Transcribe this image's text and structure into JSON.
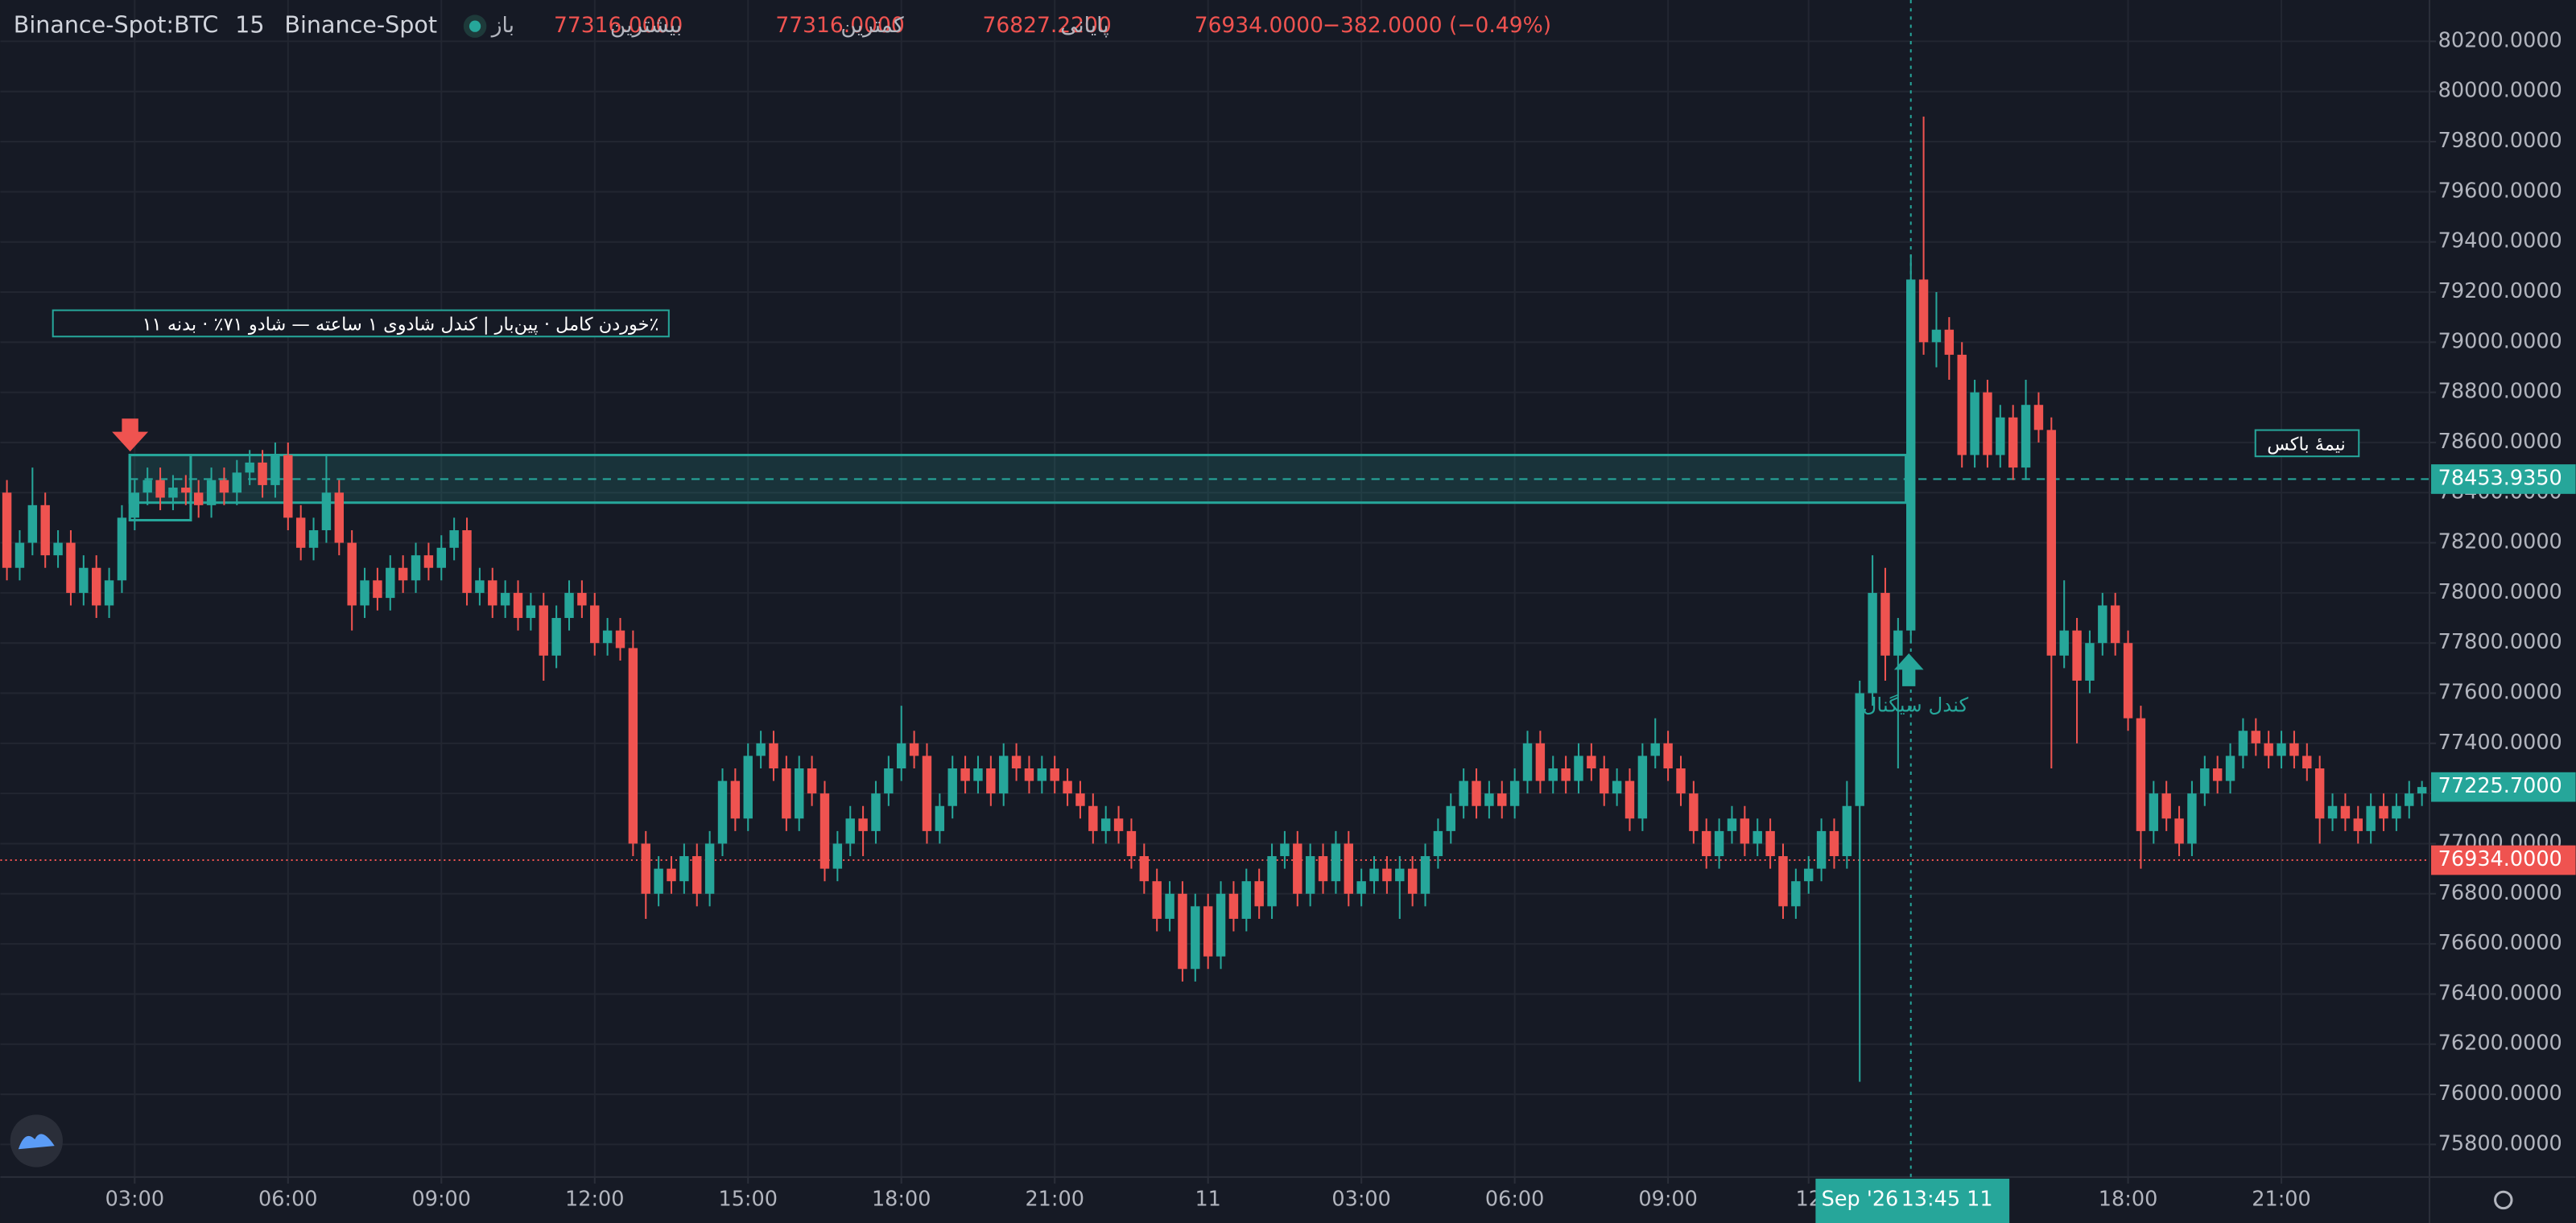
{
  "chart_data": {
    "type": "candlestick",
    "header": {
      "symbol": "Binance-Spot:BTC",
      "interval": "15",
      "exchange": "Binance-Spot",
      "fields": [
        {
          "label": "باز",
          "value": "77316.0000"
        },
        {
          "label": "بیشترین",
          "value": "77316.0000"
        },
        {
          "label": "کمترین",
          "value": "76827.2200"
        },
        {
          "label": "پایانی",
          "value": "76934.0000"
        }
      ],
      "change": "−382.0000 (−0.49%)"
    },
    "up_color": "#26a69a",
    "down_color": "#ef5350",
    "ylim": [
      75670,
      80365
    ],
    "yticks": [
      {
        "value": 75800,
        "label": "75800.0000"
      },
      {
        "value": 76000,
        "label": "76000.0000"
      },
      {
        "value": 76200,
        "label": "76200.0000"
      },
      {
        "value": 76400,
        "label": "76400.0000"
      },
      {
        "value": 76600,
        "label": "76600.0000"
      },
      {
        "value": 76800,
        "label": "76800.0000"
      },
      {
        "value": 77000,
        "label": "77000.0000"
      },
      {
        "value": 77200,
        "label": "77200.0000"
      },
      {
        "value": 77400,
        "label": "77400.0000"
      },
      {
        "value": 77600,
        "label": "77600.0000"
      },
      {
        "value": 77800,
        "label": "77800.0000"
      },
      {
        "value": 78000,
        "label": "78000.0000"
      },
      {
        "value": 78200,
        "label": "78200.0000"
      },
      {
        "value": 78400,
        "label": "78400.0000"
      },
      {
        "value": 78600,
        "label": "78600.0000"
      },
      {
        "value": 78800,
        "label": "78800.0000"
      },
      {
        "value": 79000,
        "label": "79000.0000"
      },
      {
        "value": 79200,
        "label": "79200.0000"
      },
      {
        "value": 79400,
        "label": "79400.0000"
      },
      {
        "value": 79600,
        "label": "79600.0000"
      },
      {
        "value": 79800,
        "label": "79800.0000"
      },
      {
        "value": 80000,
        "label": "80000.0000"
      },
      {
        "value": 80200,
        "label": "80200.0000"
      }
    ],
    "xticks": [
      {
        "value": 10,
        "label": "03:00"
      },
      {
        "value": 22,
        "label": "06:00"
      },
      {
        "value": 34,
        "label": "09:00"
      },
      {
        "value": 46,
        "label": "12:00"
      },
      {
        "value": 58,
        "label": "15:00"
      },
      {
        "value": 70,
        "label": "18:00"
      },
      {
        "value": 82,
        "label": "21:00"
      },
      {
        "value": 94,
        "label": "11"
      },
      {
        "value": 106,
        "label": "03:00"
      },
      {
        "value": 118,
        "label": "06:00"
      },
      {
        "value": 130,
        "label": "09:00"
      },
      {
        "value": 141,
        "label": "12"
      },
      {
        "value": 166,
        "label": "18:00"
      },
      {
        "value": 178,
        "label": "21:00"
      }
    ],
    "grid": true,
    "ohlc": [
      [
        78400,
        78450,
        78050,
        78100
      ],
      [
        78100,
        78250,
        78050,
        78200
      ],
      [
        78200,
        78500,
        78150,
        78350
      ],
      [
        78350,
        78400,
        78100,
        78150
      ],
      [
        78150,
        78250,
        78100,
        78200
      ],
      [
        78200,
        78250,
        77950,
        78000
      ],
      [
        78000,
        78150,
        77950,
        78100
      ],
      [
        78100,
        78150,
        77900,
        77950
      ],
      [
        77950,
        78100,
        77900,
        78050
      ],
      [
        78050,
        78350,
        78000,
        78300
      ],
      [
        78300,
        78450,
        78250,
        78400
      ],
      [
        78400,
        78500,
        78350,
        78450
      ],
      [
        78450,
        78500,
        78330,
        78380
      ],
      [
        78380,
        78470,
        78330,
        78420
      ],
      [
        78420,
        78470,
        78350,
        78400
      ],
      [
        78400,
        78450,
        78300,
        78350
      ],
      [
        78350,
        78500,
        78300,
        78450
      ],
      [
        78450,
        78500,
        78350,
        78400
      ],
      [
        78400,
        78530,
        78350,
        78480
      ],
      [
        78480,
        78570,
        78430,
        78520
      ],
      [
        78520,
        78570,
        78380,
        78430
      ],
      [
        78430,
        78600,
        78380,
        78550
      ],
      [
        78550,
        78600,
        78250,
        78300
      ],
      [
        78300,
        78350,
        78130,
        78180
      ],
      [
        78180,
        78300,
        78130,
        78250
      ],
      [
        78250,
        78550,
        78200,
        78400
      ],
      [
        78400,
        78450,
        78150,
        78200
      ],
      [
        78200,
        78250,
        77850,
        77950
      ],
      [
        77950,
        78100,
        77900,
        78050
      ],
      [
        78050,
        78100,
        77930,
        77980
      ],
      [
        77980,
        78150,
        77930,
        78100
      ],
      [
        78100,
        78150,
        78000,
        78050
      ],
      [
        78050,
        78200,
        78000,
        78150
      ],
      [
        78150,
        78200,
        78050,
        78100
      ],
      [
        78100,
        78230,
        78050,
        78180
      ],
      [
        78180,
        78300,
        78130,
        78250
      ],
      [
        78250,
        78300,
        77950,
        78000
      ],
      [
        78000,
        78100,
        77950,
        78050
      ],
      [
        78050,
        78100,
        77900,
        77950
      ],
      [
        77950,
        78050,
        77900,
        78000
      ],
      [
        78000,
        78050,
        77850,
        77900
      ],
      [
        77900,
        78000,
        77850,
        77950
      ],
      [
        77950,
        78000,
        77650,
        77750
      ],
      [
        77750,
        77950,
        77700,
        77900
      ],
      [
        77900,
        78050,
        77850,
        78000
      ],
      [
        78000,
        78050,
        77900,
        77950
      ],
      [
        77950,
        78000,
        77750,
        77800
      ],
      [
        77800,
        77900,
        77750,
        77850
      ],
      [
        77850,
        77900,
        77730,
        77780
      ],
      [
        77780,
        77850,
        76950,
        77000
      ],
      [
        77000,
        77050,
        76700,
        76800
      ],
      [
        76800,
        76950,
        76750,
        76900
      ],
      [
        76900,
        76950,
        76800,
        76850
      ],
      [
        76850,
        77000,
        76800,
        76950
      ],
      [
        76950,
        77000,
        76750,
        76800
      ],
      [
        76800,
        77050,
        76750,
        77000
      ],
      [
        77000,
        77300,
        76950,
        77250
      ],
      [
        77250,
        77300,
        77050,
        77100
      ],
      [
        77100,
        77400,
        77050,
        77350
      ],
      [
        77350,
        77450,
        77300,
        77400
      ],
      [
        77400,
        77450,
        77250,
        77300
      ],
      [
        77300,
        77350,
        77050,
        77100
      ],
      [
        77100,
        77350,
        77050,
        77300
      ],
      [
        77300,
        77350,
        77150,
        77200
      ],
      [
        77200,
        77250,
        76850,
        76900
      ],
      [
        76900,
        77050,
        76850,
        77000
      ],
      [
        77000,
        77150,
        76950,
        77100
      ],
      [
        77100,
        77150,
        76950,
        77050
      ],
      [
        77050,
        77250,
        77000,
        77200
      ],
      [
        77200,
        77350,
        77150,
        77300
      ],
      [
        77300,
        77550,
        77250,
        77400
      ],
      [
        77400,
        77450,
        77300,
        77350
      ],
      [
        77350,
        77400,
        77000,
        77050
      ],
      [
        77050,
        77200,
        77000,
        77150
      ],
      [
        77150,
        77350,
        77100,
        77300
      ],
      [
        77300,
        77350,
        77200,
        77250
      ],
      [
        77250,
        77350,
        77200,
        77300
      ],
      [
        77300,
        77350,
        77150,
        77200
      ],
      [
        77200,
        77400,
        77150,
        77350
      ],
      [
        77350,
        77400,
        77250,
        77300
      ],
      [
        77300,
        77350,
        77200,
        77250
      ],
      [
        77250,
        77350,
        77200,
        77300
      ],
      [
        77300,
        77350,
        77200,
        77250
      ],
      [
        77250,
        77300,
        77150,
        77200
      ],
      [
        77200,
        77250,
        77100,
        77150
      ],
      [
        77150,
        77200,
        77000,
        77050
      ],
      [
        77050,
        77150,
        77000,
        77100
      ],
      [
        77100,
        77150,
        77000,
        77050
      ],
      [
        77050,
        77100,
        76900,
        76950
      ],
      [
        76950,
        77000,
        76800,
        76850
      ],
      [
        76850,
        76900,
        76650,
        76700
      ],
      [
        76700,
        76850,
        76650,
        76800
      ],
      [
        76800,
        76850,
        76450,
        76500
      ],
      [
        76500,
        76800,
        76450,
        76750
      ],
      [
        76750,
        76800,
        76500,
        76550
      ],
      [
        76550,
        76850,
        76500,
        76800
      ],
      [
        76800,
        76850,
        76650,
        76700
      ],
      [
        76700,
        76900,
        76650,
        76850
      ],
      [
        76850,
        76900,
        76700,
        76750
      ],
      [
        76750,
        77000,
        76700,
        76950
      ],
      [
        76950,
        77050,
        76900,
        77000
      ],
      [
        77000,
        77050,
        76750,
        76800
      ],
      [
        76800,
        77000,
        76750,
        76950
      ],
      [
        76950,
        77000,
        76800,
        76850
      ],
      [
        76850,
        77050,
        76800,
        77000
      ],
      [
        77000,
        77050,
        76750,
        76800
      ],
      [
        76800,
        76900,
        76750,
        76850
      ],
      [
        76850,
        76950,
        76800,
        76900
      ],
      [
        76900,
        76950,
        76800,
        76850
      ],
      [
        76850,
        76950,
        76700,
        76900
      ],
      [
        76900,
        76950,
        76750,
        76800
      ],
      [
        76800,
        77000,
        76750,
        76950
      ],
      [
        76950,
        77100,
        76900,
        77050
      ],
      [
        77050,
        77200,
        77000,
        77150
      ],
      [
        77150,
        77300,
        77100,
        77250
      ],
      [
        77250,
        77300,
        77100,
        77150
      ],
      [
        77150,
        77250,
        77100,
        77200
      ],
      [
        77200,
        77250,
        77100,
        77150
      ],
      [
        77150,
        77300,
        77100,
        77250
      ],
      [
        77250,
        77450,
        77200,
        77400
      ],
      [
        77400,
        77450,
        77200,
        77250
      ],
      [
        77250,
        77350,
        77200,
        77300
      ],
      [
        77300,
        77350,
        77200,
        77250
      ],
      [
        77250,
        77400,
        77200,
        77350
      ],
      [
        77350,
        77400,
        77250,
        77300
      ],
      [
        77300,
        77350,
        77150,
        77200
      ],
      [
        77200,
        77300,
        77150,
        77250
      ],
      [
        77250,
        77300,
        77050,
        77100
      ],
      [
        77100,
        77400,
        77050,
        77350
      ],
      [
        77350,
        77500,
        77300,
        77400
      ],
      [
        77400,
        77450,
        77250,
        77300
      ],
      [
        77300,
        77350,
        77150,
        77200
      ],
      [
        77200,
        77250,
        77000,
        77050
      ],
      [
        77050,
        77100,
        76900,
        76950
      ],
      [
        76950,
        77100,
        76900,
        77050
      ],
      [
        77050,
        77150,
        77000,
        77100
      ],
      [
        77100,
        77150,
        76950,
        77000
      ],
      [
        77000,
        77100,
        76950,
        77050
      ],
      [
        77050,
        77100,
        76900,
        76950
      ],
      [
        76950,
        77000,
        76700,
        76750
      ],
      [
        76750,
        76900,
        76700,
        76850
      ],
      [
        76850,
        76950,
        76800,
        76900
      ],
      [
        76900,
        77100,
        76850,
        77050
      ],
      [
        77050,
        77100,
        76900,
        76950
      ],
      [
        76950,
        77250,
        76900,
        77150
      ],
      [
        77150,
        77650,
        76050,
        77600
      ],
      [
        77600,
        78150,
        77550,
        78000
      ],
      [
        78000,
        78100,
        77650,
        77750
      ],
      [
        77750,
        77900,
        77300,
        77850
      ],
      [
        77850,
        79350,
        77800,
        79250
      ],
      [
        79250,
        79900,
        78950,
        79000
      ],
      [
        79000,
        79200,
        78900,
        79050
      ],
      [
        79050,
        79100,
        78850,
        78950
      ],
      [
        78950,
        79000,
        78500,
        78550
      ],
      [
        78550,
        78850,
        78500,
        78800
      ],
      [
        78800,
        78850,
        78500,
        78550
      ],
      [
        78550,
        78750,
        78500,
        78700
      ],
      [
        78700,
        78750,
        78450,
        78500
      ],
      [
        78500,
        78850,
        78450,
        78750
      ],
      [
        78750,
        78800,
        78600,
        78650
      ],
      [
        78650,
        78700,
        77300,
        77750
      ],
      [
        77750,
        78050,
        77700,
        77850
      ],
      [
        77850,
        77900,
        77400,
        77650
      ],
      [
        77650,
        77850,
        77600,
        77800
      ],
      [
        77800,
        78000,
        77750,
        77950
      ],
      [
        77950,
        78000,
        77750,
        77800
      ],
      [
        77800,
        77850,
        77450,
        77500
      ],
      [
        77500,
        77550,
        76900,
        77050
      ],
      [
        77050,
        77250,
        77000,
        77200
      ],
      [
        77200,
        77250,
        77050,
        77100
      ],
      [
        77100,
        77150,
        76950,
        77000
      ],
      [
        77000,
        77250,
        76950,
        77200
      ],
      [
        77200,
        77350,
        77150,
        77300
      ],
      [
        77300,
        77350,
        77200,
        77250
      ],
      [
        77250,
        77400,
        77200,
        77350
      ],
      [
        77350,
        77500,
        77300,
        77450
      ],
      [
        77450,
        77500,
        77350,
        77400
      ],
      [
        77400,
        77450,
        77300,
        77350
      ],
      [
        77350,
        77450,
        77300,
        77400
      ],
      [
        77400,
        77450,
        77300,
        77350
      ],
      [
        77350,
        77400,
        77250,
        77300
      ],
      [
        77300,
        77350,
        77000,
        77100
      ],
      [
        77100,
        77200,
        77050,
        77150
      ],
      [
        77150,
        77200,
        77050,
        77100
      ],
      [
        77100,
        77150,
        77000,
        77050
      ],
      [
        77050,
        77200,
        77000,
        77150
      ],
      [
        77150,
        77200,
        77050,
        77100
      ],
      [
        77100,
        77200,
        77050,
        77150
      ],
      [
        77150,
        77250,
        77100,
        77200
      ],
      [
        77200,
        77250,
        77150,
        77225.7
      ]
    ],
    "zone": {
      "start": 10,
      "end": 149,
      "top": 78550,
      "bottom": 78360,
      "mid": 78453.935,
      "mid_label": "78453.9350"
    },
    "small_box": {
      "start": 10,
      "end": 14,
      "top": 78550,
      "bottom": 78290
    },
    "last_price": {
      "value": 77225.7,
      "label": "77225.7000"
    },
    "close_line": {
      "value": 76934,
      "label": "76934.0000"
    },
    "annotations": {
      "pattern": "٪خوردن کامل · پین‌بار | کندل شادوی ۱ ساعته — شادو ۷۱٪ · بدنه ۱۱",
      "half_box": "نیمهٔ باکس",
      "signal": "کندل سیگنال"
    },
    "crosshair": {
      "index": 149,
      "date": "Sep '26",
      "time": "13:45 11"
    }
  }
}
